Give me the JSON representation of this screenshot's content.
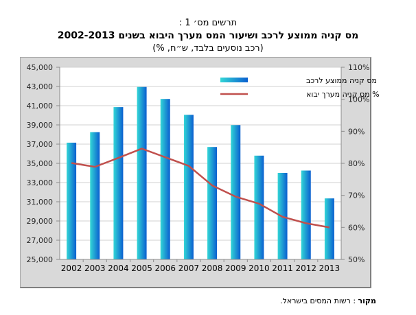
{
  "header": {
    "figure_number": "תרשים מס׳ 1 :",
    "title": "מס קניה ממוצע לרכב ושיעור המס מערך היבוא בשנים 2002-2013",
    "subtitle": "(רכב נוסעים בלבד, ש״ח, %)"
  },
  "footer": {
    "source_label": "מקור",
    "source_text": " : רשות המסים בישראל."
  },
  "colors": {
    "bar_light": "#33d6d6",
    "bar_dark": "#0a5fd0",
    "line": "#c0504d",
    "frame_bg": "#d9d9d9",
    "plot_bg": "#ffffff",
    "grid": "#d0d0d0"
  },
  "chart_data": {
    "type": "bar",
    "title": "מס קניה ממוצע לרכב ושיעור המס מערך היבוא בשנים 2002-2013",
    "subtitle": "(רכב נוסעים בלבד, ש״ח, %)",
    "xlabel": "",
    "ylabel": "",
    "categories": [
      "2002",
      "2003",
      "2004",
      "2005",
      "2006",
      "2007",
      "2008",
      "2009",
      "2010",
      "2011",
      "2012",
      "2013"
    ],
    "series": [
      {
        "name": "מס קניה ממוצע לרכב",
        "type": "bar",
        "axis": "left",
        "values": [
          37150,
          38250,
          40850,
          42950,
          41700,
          40050,
          36700,
          38980,
          35800,
          34000,
          34250,
          31350
        ]
      },
      {
        "name": "% מס קניה מערך יבוא",
        "type": "line",
        "axis": "right",
        "values": [
          80.1,
          78.9,
          81.7,
          84.6,
          81.9,
          79.2,
          73.1,
          69.6,
          67.4,
          63.3,
          61.3,
          60.0
        ]
      }
    ],
    "y_left": {
      "min": 25000,
      "max": 45000,
      "step": 2000,
      "tick_labels": [
        "25,000",
        "27,000",
        "29,000",
        "31,000",
        "33,000",
        "35,000",
        "37,000",
        "39,000",
        "41,000",
        "43,000",
        "45,000"
      ]
    },
    "y_right": {
      "min": 50,
      "max": 110,
      "step": 10,
      "tick_labels": [
        "50%",
        "60%",
        "70%",
        "80%",
        "90%",
        "100%",
        "110%"
      ]
    },
    "grid": true,
    "legend": {
      "placement": "top-right",
      "entries": [
        "מס קניה ממוצע לרכב",
        "% מס קניה מערך יבוא"
      ]
    }
  }
}
